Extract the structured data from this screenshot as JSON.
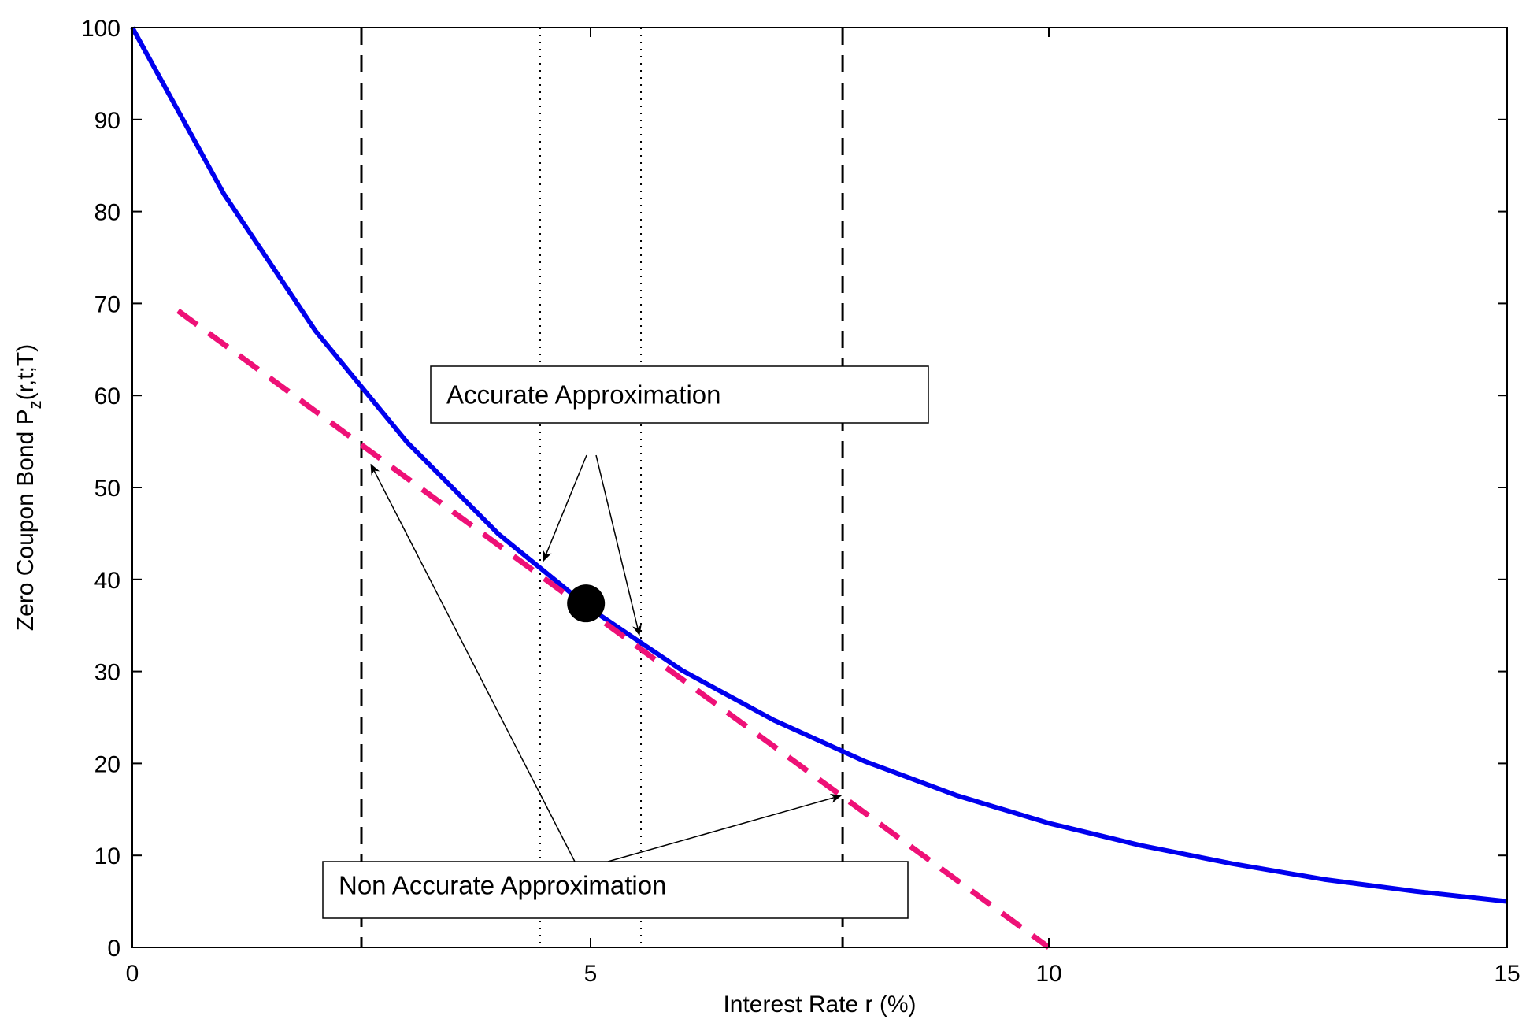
{
  "chart_data": {
    "type": "line",
    "xlabel": "Interest Rate r (%)",
    "ylabel_main": "Zero Coupon Bond P",
    "ylabel_sub": "z",
    "ylabel_tail": "(r,t;T)",
    "xlim": [
      0,
      15
    ],
    "ylim": [
      0,
      100
    ],
    "xticks": [
      0,
      5,
      10,
      15
    ],
    "yticks": [
      0,
      10,
      20,
      30,
      40,
      50,
      60,
      70,
      80,
      90,
      100
    ],
    "grid": false,
    "series": [
      {
        "style": "solid",
        "color": "#0000ee",
        "x": [
          0,
          1,
          2,
          3,
          4,
          5,
          6,
          7,
          8,
          9,
          10,
          11,
          12,
          13,
          14,
          15
        ],
        "y": [
          100,
          81.9,
          67.0,
          54.9,
          44.9,
          36.8,
          30.1,
          24.7,
          20.2,
          16.5,
          13.5,
          11.1,
          9.1,
          7.4,
          6.1,
          5.0
        ]
      },
      {
        "style": "dashed",
        "color": "#ee1177",
        "x": [
          0.5,
          10.0
        ],
        "y": [
          69.2,
          0
        ]
      }
    ],
    "marker": {
      "x": 4.95,
      "y": 37.4
    },
    "vlines_dashed": [
      2.5,
      7.75
    ],
    "vlines_dotted": [
      4.45,
      5.55
    ],
    "annotations": [
      {
        "text": "Accurate Approximation",
        "arrows_to": [
          {
            "x": 4.45,
            "y": 42.0
          },
          {
            "x": 5.55,
            "y": 33.6
          }
        ]
      },
      {
        "text": "Non Accurate Approximation",
        "arrows_to": [
          {
            "x": 2.5,
            "y": 53.2
          },
          {
            "x": 7.75,
            "y": 16.5
          }
        ]
      }
    ]
  }
}
